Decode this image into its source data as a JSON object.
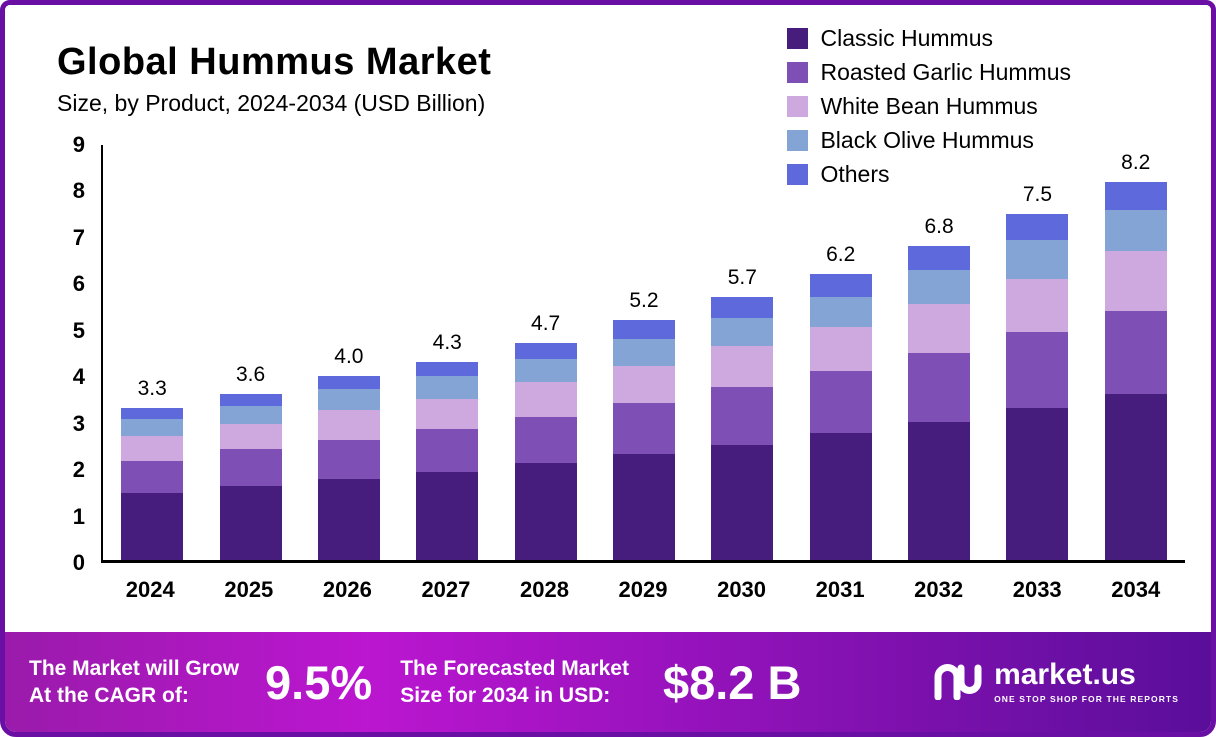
{
  "header": {
    "title": "Global Hummus Market",
    "subtitle": "Size, by Product, 2024-2034 (USD Billion)"
  },
  "legend": [
    {
      "label": "Classic Hummus",
      "color": "#461d7c"
    },
    {
      "label": "Roasted Garlic Hummus",
      "color": "#7e4fb5"
    },
    {
      "label": "White Bean Hummus",
      "color": "#cda9e0"
    },
    {
      "label": "Black Olive Hummus",
      "color": "#83a4d4"
    },
    {
      "label": "Others",
      "color": "#5e6adb"
    }
  ],
  "chart_data": {
    "type": "bar",
    "stacked": true,
    "title": "Global Hummus Market Size, by Product, 2024-2034 (USD Billion)",
    "categories": [
      "2024",
      "2025",
      "2026",
      "2027",
      "2028",
      "2029",
      "2030",
      "2031",
      "2032",
      "2033",
      "2034"
    ],
    "series": [
      {
        "name": "Classic Hummus",
        "color": "#461d7c",
        "values": [
          1.45,
          1.6,
          1.75,
          1.9,
          2.1,
          2.3,
          2.5,
          2.75,
          3.0,
          3.3,
          3.6
        ]
      },
      {
        "name": "Roasted Garlic Hummus",
        "color": "#7e4fb5",
        "values": [
          0.7,
          0.8,
          0.85,
          0.95,
          1.0,
          1.1,
          1.25,
          1.35,
          1.5,
          1.65,
          1.8
        ]
      },
      {
        "name": "White Bean Hummus",
        "color": "#cda9e0",
        "values": [
          0.55,
          0.55,
          0.65,
          0.65,
          0.75,
          0.8,
          0.9,
          0.95,
          1.05,
          1.15,
          1.3
        ]
      },
      {
        "name": "Black Olive Hummus",
        "color": "#83a4d4",
        "values": [
          0.35,
          0.4,
          0.45,
          0.5,
          0.5,
          0.6,
          0.6,
          0.65,
          0.75,
          0.85,
          0.9
        ]
      },
      {
        "name": "Others",
        "color": "#5e6adb",
        "values": [
          0.25,
          0.25,
          0.3,
          0.3,
          0.35,
          0.4,
          0.45,
          0.5,
          0.5,
          0.55,
          0.6
        ]
      }
    ],
    "totals": [
      3.3,
      3.6,
      4.0,
      4.3,
      4.7,
      5.2,
      5.7,
      6.2,
      6.8,
      7.5,
      8.2
    ],
    "totals_labels": [
      "3.3",
      "3.6",
      "4.0",
      "4.3",
      "4.7",
      "5.2",
      "5.7",
      "6.2",
      "6.8",
      "7.5",
      "8.2"
    ],
    "ylim": [
      0,
      9
    ],
    "yticks": [
      0,
      1,
      2,
      3,
      4,
      5,
      6,
      7,
      8,
      9
    ],
    "xlabel": "",
    "ylabel": "",
    "grid": false,
    "legend_position": "top-right"
  },
  "banner": {
    "cagr_line1": "The Market will Grow",
    "cagr_line2": "At the CAGR of:",
    "cagr_value": "9.5%",
    "forecast_line1": "The Forecasted Market",
    "forecast_line2": "Size for 2034 in USD:",
    "forecast_value": "$8.2 B",
    "brand": "market.us",
    "brand_tagline": "ONE STOP SHOP FOR THE REPORTS"
  }
}
